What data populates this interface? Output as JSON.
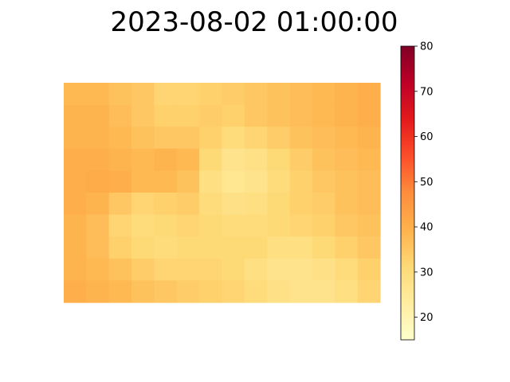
{
  "chart_data": {
    "type": "heatmap",
    "title": "2023-08-02 01:00:00",
    "xlabel": "",
    "ylabel": "",
    "axes_visible": false,
    "colormap": "YlOrRd",
    "colormap_stops": [
      "#ffffcc",
      "#ffeda0",
      "#fed976",
      "#feb24c",
      "#fd8d3c",
      "#fc4e2a",
      "#e31a1c",
      "#bd0026",
      "#800026"
    ],
    "colorbar": {
      "range": [
        15,
        80
      ],
      "ticks": [
        20,
        30,
        40,
        50,
        60,
        70,
        80
      ],
      "tick_labels": [
        "20",
        "30",
        "40",
        "50",
        "60",
        "70",
        "80"
      ]
    },
    "grid_shape": [
      10,
      14
    ],
    "z": [
      [
        38,
        38,
        36,
        35,
        32,
        32,
        33,
        34,
        35,
        36,
        37,
        38,
        39,
        40
      ],
      [
        39,
        39,
        37,
        35,
        33,
        33,
        34,
        33,
        35,
        36,
        37,
        38,
        39,
        40
      ],
      [
        39,
        39,
        38,
        36,
        35,
        35,
        33,
        30,
        32,
        34,
        36,
        37,
        38,
        39
      ],
      [
        40,
        40,
        39,
        38,
        39,
        38,
        31,
        27,
        28,
        31,
        34,
        36,
        37,
        38
      ],
      [
        40,
        41,
        40,
        38,
        38,
        36,
        29,
        26,
        27,
        30,
        33,
        35,
        36,
        37
      ],
      [
        40,
        39,
        35,
        32,
        33,
        34,
        30,
        28,
        29,
        31,
        33,
        34,
        36,
        37
      ],
      [
        39,
        37,
        32,
        30,
        31,
        32,
        31,
        30,
        30,
        31,
        32,
        33,
        35,
        36
      ],
      [
        39,
        37,
        33,
        31,
        30,
        31,
        31,
        31,
        31,
        29,
        29,
        31,
        33,
        35
      ],
      [
        39,
        38,
        36,
        34,
        32,
        32,
        32,
        31,
        29,
        27,
        27,
        28,
        30,
        33
      ],
      [
        40,
        39,
        38,
        36,
        35,
        34,
        33,
        32,
        30,
        28,
        27,
        27,
        29,
        32
      ]
    ]
  }
}
